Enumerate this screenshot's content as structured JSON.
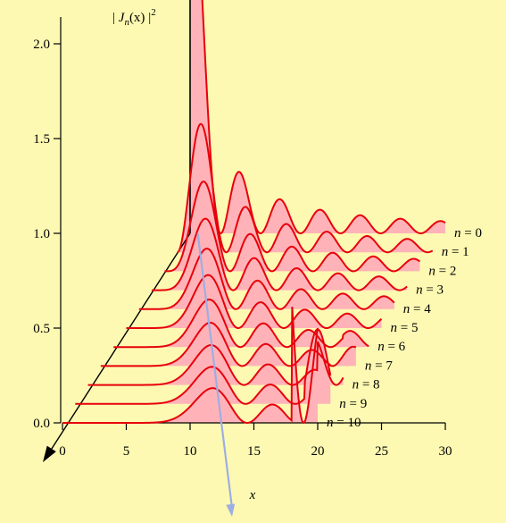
{
  "chart_data": {
    "type": "line",
    "title": "",
    "ylabel": {
      "pre": "| ",
      "j": "J",
      "sub": "n",
      "arg": "(x)",
      "post": " |",
      "sup": "2"
    },
    "xlabel": "x",
    "x_axis": {
      "ticks": [
        0,
        5,
        10,
        15,
        20,
        25,
        30
      ],
      "labels": [
        "0",
        "5",
        "10",
        "15",
        "20",
        "25",
        "30"
      ],
      "range": [
        0,
        30
      ]
    },
    "y_axis": {
      "ticks": [
        0.0,
        0.5,
        1.0,
        1.5,
        2.0
      ],
      "labels": [
        "0.0",
        "0.5",
        "1.0",
        "1.5",
        "2.0"
      ],
      "range": [
        0,
        2.0
      ]
    },
    "depth_step_y": 0.1,
    "depth_step_x": -1,
    "n_values": [
      0,
      1,
      2,
      3,
      4,
      5,
      6,
      7,
      8,
      9,
      10
    ],
    "series_labels": [
      "n = 0",
      "n = 1",
      "n = 2",
      "n = 3",
      "n = 4",
      "n = 5",
      "n = 6",
      "n = 7",
      "n = 8",
      "n = 9",
      "n = 10"
    ],
    "function": "|J_n(x)|^2, plotted for x from 0 to 30 (offset by n)",
    "colors": {
      "curve": "#e8000b",
      "fill": "#ffb3b8",
      "axis": "#000000",
      "arrow": "#9daee3",
      "background": "#fdf9b2"
    }
  }
}
